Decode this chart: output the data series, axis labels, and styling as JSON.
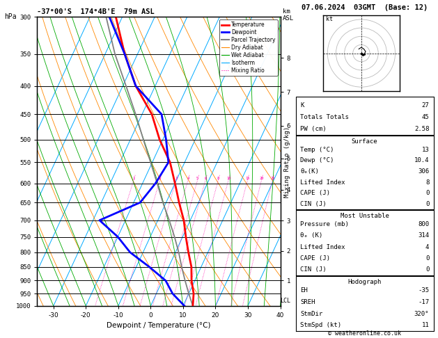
{
  "title_left": "-37°00'S  174°4B'E  79m ASL",
  "title_right": "07.06.2024  03GMT  (Base: 12)",
  "hpa_label": "hPa",
  "xlabel": "Dewpoint / Temperature (°C)",
  "ylabel_right": "Mixing Ratio (g/kg)",
  "pressure_levels": [
    300,
    350,
    400,
    450,
    500,
    550,
    600,
    650,
    700,
    750,
    800,
    850,
    900,
    950,
    1000
  ],
  "temp_xlim": [
    -35,
    40
  ],
  "temp_xticks": [
    -30,
    -20,
    -10,
    0,
    10,
    20,
    30,
    40
  ],
  "lcl_pressure": 980,
  "skew_factor": 0.55,
  "mixing_ratio_values": [
    1,
    2,
    3,
    4,
    5,
    6,
    8,
    10,
    15,
    20,
    25
  ],
  "temp_profile": {
    "pressure": [
      1000,
      950,
      900,
      850,
      800,
      750,
      700,
      650,
      600,
      550,
      500,
      450,
      400,
      350,
      300
    ],
    "temp": [
      13,
      11.5,
      9,
      7,
      4,
      1,
      -2,
      -6,
      -10,
      -14.5,
      -21,
      -27,
      -36,
      -44,
      -52
    ]
  },
  "dewpoint_profile": {
    "pressure": [
      1000,
      950,
      900,
      850,
      800,
      750,
      700,
      650,
      600,
      550,
      500,
      450,
      400,
      350,
      300
    ],
    "dewpoint": [
      10.4,
      5,
      1,
      -6,
      -14,
      -20,
      -28,
      -18,
      -16,
      -15,
      -19,
      -24,
      -36,
      -44,
      -54
    ]
  },
  "parcel_profile": {
    "pressure": [
      1000,
      950,
      900,
      850,
      800,
      750,
      700,
      650,
      600,
      550,
      500,
      450,
      400,
      350,
      300
    ],
    "temp": [
      13,
      10,
      7,
      4,
      1,
      -2.5,
      -6.5,
      -11,
      -15.5,
      -20.5,
      -26,
      -32,
      -39,
      -47,
      -55
    ]
  },
  "temp_color": "#ff0000",
  "dewpoint_color": "#0000ff",
  "parcel_color": "#808080",
  "isotherm_color": "#00aaff",
  "dry_adiabat_color": "#ff8800",
  "wet_adiabat_color": "#00aa00",
  "mixing_ratio_color": "#ff00aa",
  "info_box": {
    "K": 27,
    "TotTot": 45,
    "PW": 2.58,
    "surf_temp": 13,
    "surf_dewp": 10.4,
    "surf_theta_e": 306,
    "surf_li": 8,
    "surf_cape": 0,
    "surf_cin": 0,
    "mu_pressure": 800,
    "mu_theta_e": 314,
    "mu_li": 4,
    "mu_cape": 0,
    "mu_cin": 0,
    "EH": -35,
    "SREH": -17,
    "StmDir": "320°",
    "StmSpd": 11
  },
  "legend_items": [
    {
      "label": "Temperature",
      "color": "#ff0000",
      "lw": 2.0,
      "ls": "solid"
    },
    {
      "label": "Dewpoint",
      "color": "#0000ff",
      "lw": 2.0,
      "ls": "solid"
    },
    {
      "label": "Parcel Trajectory",
      "color": "#808080",
      "lw": 1.5,
      "ls": "solid"
    },
    {
      "label": "Dry Adiabat",
      "color": "#ff8800",
      "lw": 0.8,
      "ls": "solid"
    },
    {
      "label": "Wet Adiabat",
      "color": "#00aa00",
      "lw": 0.8,
      "ls": "solid"
    },
    {
      "label": "Isotherm",
      "color": "#00aaff",
      "lw": 0.8,
      "ls": "solid"
    },
    {
      "label": "Mixing Ratio",
      "color": "#ff00aa",
      "lw": 0.8,
      "ls": "dotted"
    }
  ]
}
